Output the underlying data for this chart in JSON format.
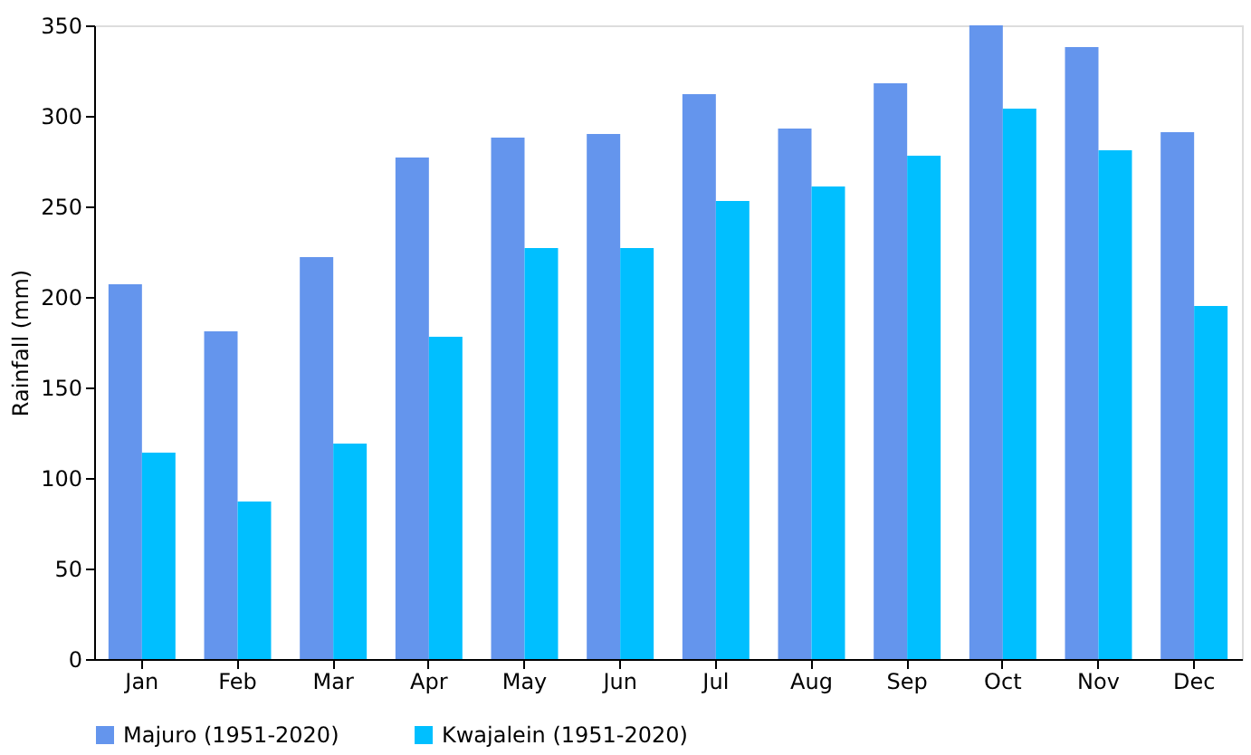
{
  "chart_data": {
    "type": "bar",
    "ylabel": "Rainfall (mm)",
    "categories": [
      "Jan",
      "Feb",
      "Mar",
      "Apr",
      "May",
      "Jun",
      "Jul",
      "Aug",
      "Sep",
      "Oct",
      "Nov",
      "Dec"
    ],
    "series": [
      {
        "name": "Majuro (1951-2020)",
        "color": "#6495ed",
        "values": [
          207,
          181,
          222,
          277,
          288,
          290,
          312,
          293,
          318,
          350,
          338,
          291
        ]
      },
      {
        "name": "Kwajalein (1951-2020)",
        "color": "#00bfff",
        "values": [
          114,
          87,
          119,
          178,
          227,
          227,
          253,
          261,
          278,
          304,
          281,
          195
        ]
      }
    ],
    "ylim": [
      0,
      350
    ],
    "yticks": [
      0,
      50,
      100,
      150,
      200,
      250,
      300,
      350
    ],
    "grid": false,
    "legend": "bottom"
  }
}
